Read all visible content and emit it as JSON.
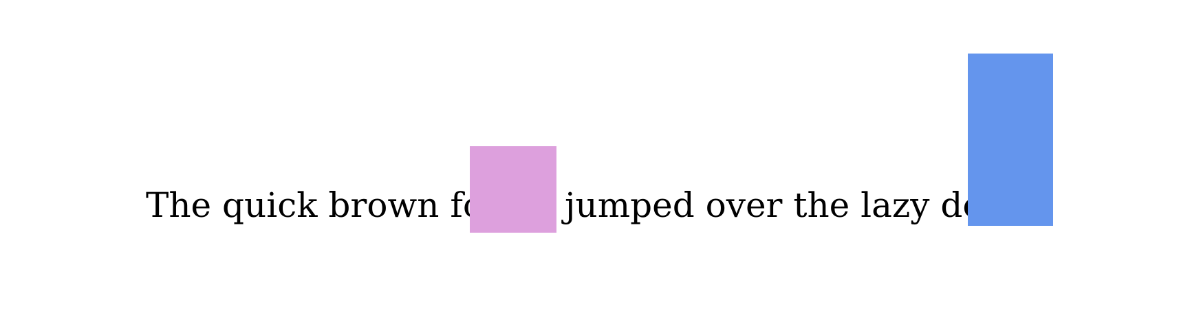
{
  "sentence": {
    "before_box": "The quick brown fox",
    "after_box": "jumped over the lazy dog."
  },
  "colors": {
    "pink_box": "#dda0dd",
    "blue_box": "#6495ed",
    "text": "#000000",
    "background": "#ffffff"
  }
}
